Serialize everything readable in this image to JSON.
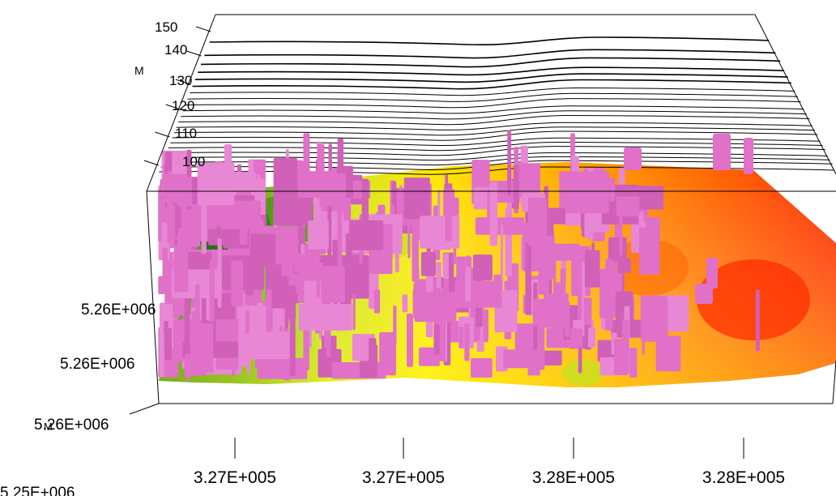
{
  "chart_data": {
    "type": "surface-3d",
    "title": "",
    "z_axis": {
      "label": "M",
      "ticks": [
        "150",
        "140",
        "130",
        "120",
        "110",
        "100"
      ],
      "values": [
        150,
        140,
        130,
        120,
        110,
        100
      ]
    },
    "y_axis": {
      "label": "M",
      "ticks": [
        "5.26E+006",
        "5.26E+006",
        "5.26E+006",
        "5.25E+006"
      ],
      "values": [
        5260000,
        5260000,
        5260000,
        5250000
      ]
    },
    "x_axis": {
      "label": "",
      "ticks": [
        "3.27E+005",
        "3.27E+005",
        "3.28E+005",
        "3.28E+005"
      ],
      "values": [
        327000,
        327000,
        328000,
        328000
      ]
    },
    "surface_colormap": [
      "#1f6b0f",
      "#7fc31a",
      "#ffff00",
      "#ffb000",
      "#ff7000",
      "#ff2a00"
    ],
    "building_color": "#e070c8",
    "contour_color": "#000000"
  }
}
